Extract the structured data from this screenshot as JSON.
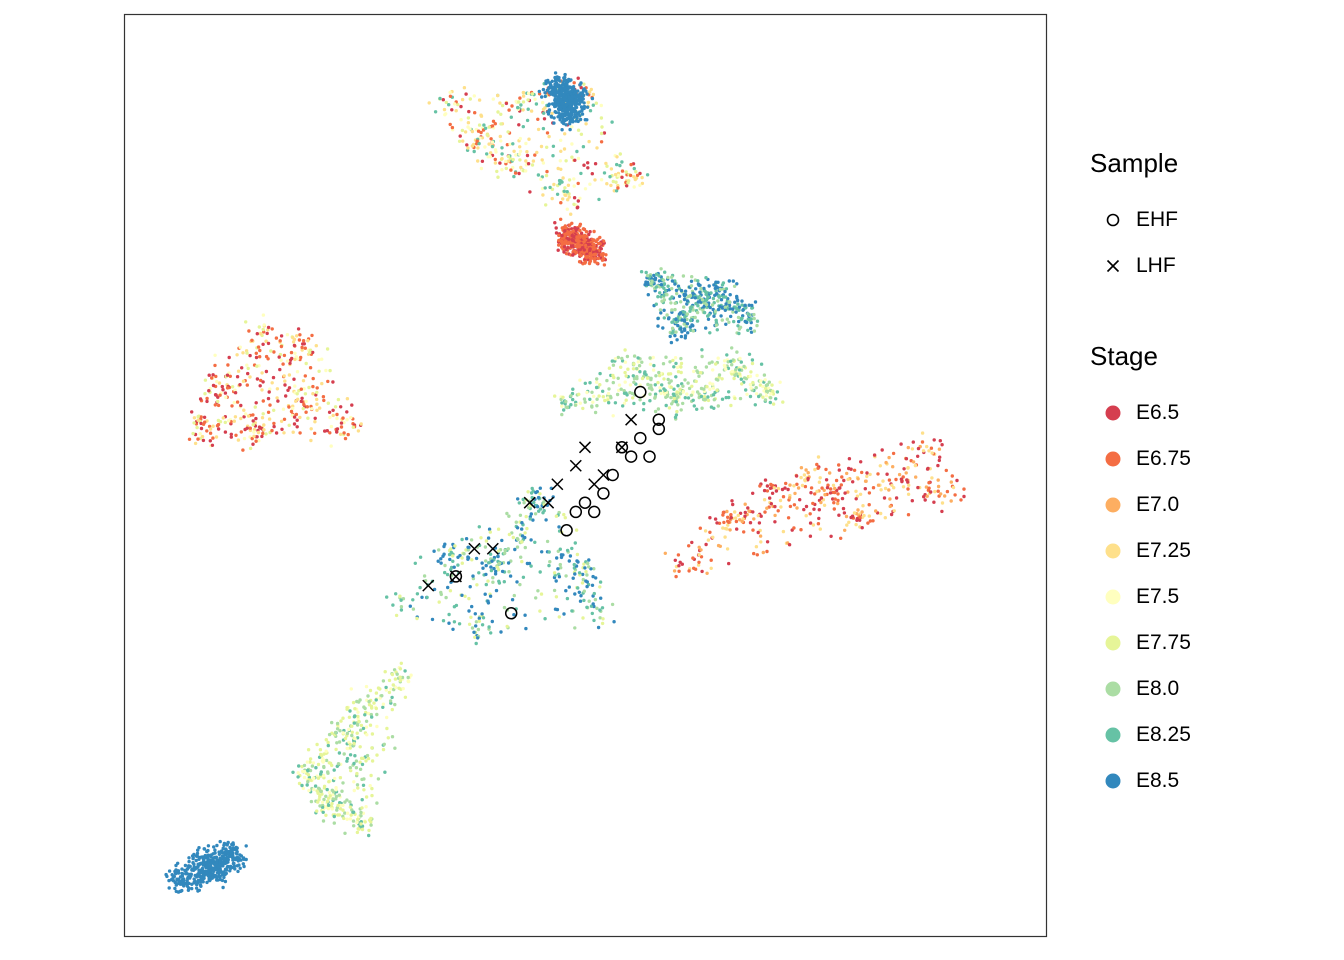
{
  "chart_data": {
    "type": "scatter",
    "title": "",
    "xlabel": "",
    "ylabel": "",
    "grid": false,
    "axis_ticks": false,
    "legend_position": "right",
    "sample_legend": {
      "title": "Sample",
      "entries": [
        {
          "label": "EHF",
          "shape": "open-circle"
        },
        {
          "label": "LHF",
          "shape": "cross"
        }
      ]
    },
    "stage_legend": {
      "title": "Stage",
      "entries": [
        {
          "label": "E6.5",
          "color": "#d53e4f"
        },
        {
          "label": "E6.75",
          "color": "#f46d43"
        },
        {
          "label": "E7.0",
          "color": "#fdae61"
        },
        {
          "label": "E7.25",
          "color": "#fee08b"
        },
        {
          "label": "E7.5",
          "color": "#ffffbf"
        },
        {
          "label": "E7.75",
          "color": "#e6f598"
        },
        {
          "label": "E8.0",
          "color": "#abdda4"
        },
        {
          "label": "E8.25",
          "color": "#66c2a5"
        },
        {
          "label": "E8.5",
          "color": "#3288bd"
        }
      ]
    },
    "xlim": [
      0,
      100
    ],
    "ylim": [
      0,
      100
    ],
    "clusters": [
      {
        "stages": [
          "E7.25",
          "E7.5",
          "E7.75",
          "E6.75",
          "E6.5",
          "E8.25"
        ],
        "points": [
          [
            35,
            90
          ],
          [
            50,
            92
          ],
          [
            42,
            84
          ],
          [
            48,
            80
          ],
          [
            55,
            82
          ],
          [
            38,
            86
          ],
          [
            44,
            91
          ]
        ]
      },
      {
        "stages": [
          "E8.5"
        ],
        "points": [
          [
            48,
            89
          ],
          [
            49,
            91
          ],
          [
            47,
            92
          ]
        ]
      },
      {
        "stages": [
          "E6.75",
          "E6.5"
        ],
        "points": [
          [
            50,
            75
          ],
          [
            51,
            74
          ],
          [
            48,
            76
          ]
        ]
      },
      {
        "stages": [
          "E6.5",
          "E6.75",
          "E7.25",
          "E7.75",
          "E7.5"
        ],
        "points": [
          [
            10,
            60
          ],
          [
            15,
            66
          ],
          [
            20,
            58
          ],
          [
            25,
            55
          ],
          [
            14,
            54
          ],
          [
            20,
            64
          ],
          [
            8,
            55
          ]
        ]
      },
      {
        "stages": [
          "E6.5",
          "E6.75",
          "E7.0",
          "E7.25"
        ],
        "points": [
          [
            75,
            50
          ],
          [
            85,
            50
          ],
          [
            90,
            48
          ],
          [
            80,
            45
          ],
          [
            88,
            53
          ],
          [
            70,
            48
          ],
          [
            65,
            45
          ],
          [
            60,
            40
          ]
        ]
      },
      {
        "stages": [
          "E8.5",
          "E8.25",
          "E8.0"
        ],
        "points": [
          [
            62,
            69
          ],
          [
            68,
            67
          ],
          [
            57,
            71
          ],
          [
            60,
            66
          ],
          [
            65,
            70
          ]
        ]
      },
      {
        "stages": [
          "E8.0",
          "E8.25",
          "E7.75",
          "E7.5"
        ],
        "points": [
          [
            60,
            58
          ],
          [
            66,
            62
          ],
          [
            70,
            59
          ],
          [
            55,
            62
          ],
          [
            48,
            58
          ]
        ]
      },
      {
        "stages": [
          "E8.5",
          "E8.25",
          "E8.0",
          "E7.75"
        ],
        "points": [
          [
            45,
            48
          ],
          [
            40,
            40
          ],
          [
            50,
            40
          ],
          [
            30,
            36
          ],
          [
            35,
            42
          ],
          [
            52,
            35
          ],
          [
            38,
            33
          ],
          [
            43,
            44
          ]
        ]
      },
      {
        "stages": [
          "E7.75",
          "E8.0",
          "E7.5",
          "E8.25"
        ],
        "points": [
          [
            25,
            24
          ],
          [
            20,
            18
          ],
          [
            26,
            12
          ],
          [
            22,
            14
          ],
          [
            30,
            28
          ]
        ]
      },
      {
        "stages": [
          "E8.5"
        ],
        "points": [
          [
            8,
            8
          ],
          [
            12,
            9
          ],
          [
            6,
            6
          ],
          [
            10,
            7
          ]
        ]
      }
    ],
    "sample_points": {
      "EHF": [
        [
          56,
          59
        ],
        [
          58,
          56
        ],
        [
          56,
          54
        ],
        [
          54,
          53
        ],
        [
          57,
          52
        ],
        [
          53,
          50
        ],
        [
          52,
          48
        ],
        [
          51,
          46
        ],
        [
          48,
          44
        ],
        [
          50,
          47
        ],
        [
          36,
          39
        ],
        [
          42,
          35
        ],
        [
          58,
          55
        ],
        [
          55,
          52
        ],
        [
          49,
          46
        ]
      ],
      "LHF": [
        [
          55,
          56
        ],
        [
          50,
          53
        ],
        [
          49,
          51
        ],
        [
          47,
          49
        ],
        [
          46,
          47
        ],
        [
          44,
          47
        ],
        [
          40,
          42
        ],
        [
          38,
          42
        ],
        [
          36,
          39
        ],
        [
          33,
          38
        ],
        [
          54,
          53
        ],
        [
          52,
          50
        ],
        [
          51,
          49
        ]
      ]
    }
  }
}
